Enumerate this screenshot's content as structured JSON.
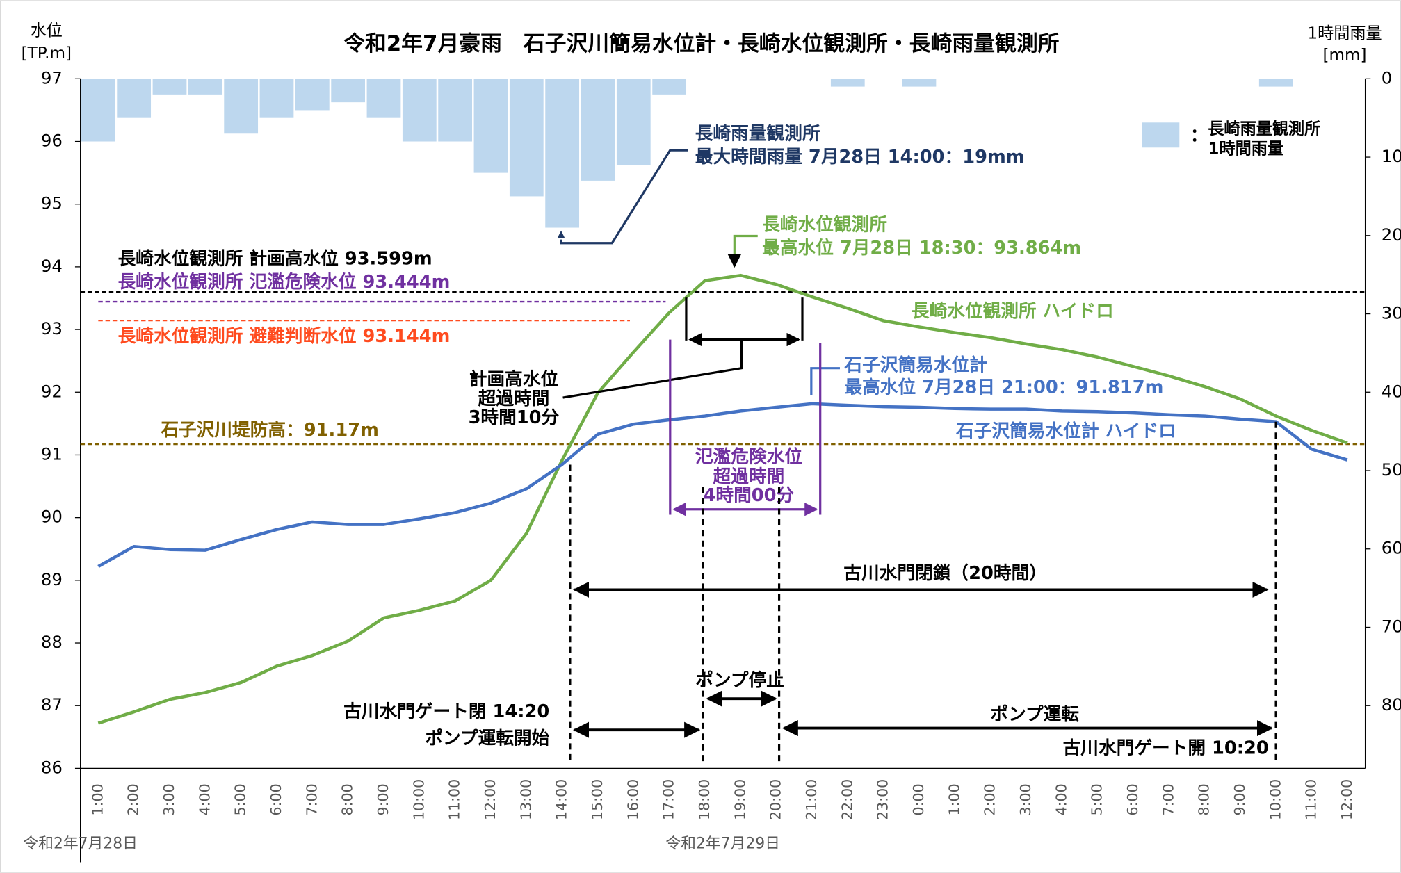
{
  "chart_data": {
    "type": "combo",
    "title": "令和2年7月豪雨　石子沢川簡易水位計・長崎水位観測所・長崎雨量観測所",
    "y_label_lines": [
      "水位",
      "[TP.m]"
    ],
    "y2_label_lines": [
      "1時間雨量",
      "[mm]"
    ],
    "categories": [
      "1:00",
      "2:00",
      "3:00",
      "4:00",
      "5:00",
      "6:00",
      "7:00",
      "8:00",
      "9:00",
      "10:00",
      "11:00",
      "12:00",
      "13:00",
      "14:00",
      "15:00",
      "16:00",
      "17:00",
      "18:00",
      "19:00",
      "20:00",
      "21:00",
      "22:00",
      "23:00",
      "0:00",
      "1:00",
      "2:00",
      "3:00",
      "4:00",
      "5:00",
      "6:00",
      "7:00",
      "8:00",
      "9:00",
      "10:00",
      "11:00",
      "12:00"
    ],
    "dates": [
      "令和2年7月28日",
      "令和2年7月29日"
    ],
    "ylim": [
      86,
      97
    ],
    "yticks": [
      86,
      87,
      88,
      89,
      90,
      91,
      92,
      93,
      94,
      95,
      96,
      97
    ],
    "y2lim": [
      0,
      88
    ],
    "y2_inverted": true,
    "y2ticks": [
      0,
      10,
      20,
      30,
      40,
      50,
      60,
      70,
      80
    ],
    "series": [
      {
        "type": "bar",
        "axis": "y2",
        "name_lines": [
          "長崎雨量観測所",
          "1時間雨量"
        ],
        "color": "#bdd7ee",
        "values": [
          8,
          5,
          2,
          2,
          7,
          5,
          4,
          3,
          5,
          8,
          8,
          12,
          15,
          19,
          13,
          11,
          2,
          0,
          0,
          0,
          0,
          1,
          0,
          1,
          0,
          0,
          0,
          0,
          0,
          0,
          0,
          0,
          0,
          1,
          0,
          0
        ]
      },
      {
        "type": "line",
        "name": "長崎水位観測所 ハイドロ",
        "color": "#70ad47",
        "values": [
          86.72,
          86.9,
          87.1,
          87.21,
          87.37,
          87.63,
          87.8,
          88.03,
          88.4,
          88.52,
          88.67,
          89.0,
          89.75,
          90.92,
          91.99,
          92.64,
          93.27,
          93.78,
          93.864,
          93.72,
          93.52,
          93.34,
          93.14,
          93.04,
          92.95,
          92.87,
          92.77,
          92.68,
          92.56,
          92.41,
          92.26,
          92.09,
          91.89,
          91.62,
          91.39,
          91.19
        ]
      },
      {
        "type": "line",
        "name": "石子沢簡易水位計 ハイドロ",
        "color": "#4472c4",
        "values": [
          89.22,
          89.54,
          89.49,
          89.48,
          89.65,
          89.81,
          89.93,
          89.89,
          89.89,
          89.98,
          90.08,
          90.23,
          90.46,
          90.85,
          91.33,
          91.49,
          91.56,
          91.62,
          91.7,
          91.76,
          91.817,
          91.79,
          91.77,
          91.76,
          91.74,
          91.73,
          91.73,
          91.7,
          91.69,
          91.67,
          91.64,
          91.62,
          91.57,
          91.53,
          91.09,
          90.92
        ]
      }
    ],
    "reference_lines": [
      {
        "value": 93.599,
        "label": "長崎水位観測所  計画高水位 93.599m",
        "color": "#000000"
      },
      {
        "value": 93.444,
        "label": "長崎水位観測所  氾濫危険水位 93.444m",
        "color": "#7030a0"
      },
      {
        "value": 93.144,
        "label": "長崎水位観測所  避難判断水位 93.144m",
        "color": "#ff4b1f"
      },
      {
        "value": 91.17,
        "label": "石子沢川堤防高：91.17m",
        "color": "#806000"
      }
    ],
    "annotations": {
      "rain_max": [
        "長崎雨量観測所",
        "最大時間雨量 7月28日 14:00：19mm"
      ],
      "nagasaki_max": [
        "長崎水位観測所",
        "最高水位 7月28日 18:30：93.864m"
      ],
      "ishiko_max": [
        "石子沢簡易水位計",
        "最高水位 7月28日 21:00：91.817m"
      ],
      "plan_exceed": [
        "計画高水位",
        "超過時間",
        "3時間10分"
      ],
      "danger_exceed": [
        "氾濫危険水位",
        "超過時間",
        "4時間00分"
      ],
      "gate_closed": "古川水門閉鎖（20時間）",
      "pump_stop": "ポンプ停止",
      "gate_close_time": [
        "古川水門ゲート閉 14:20",
        "ポンプ運転開始"
      ],
      "pump_run": "ポンプ運転",
      "gate_open_time": "古川水門ゲート開 10:20"
    }
  }
}
